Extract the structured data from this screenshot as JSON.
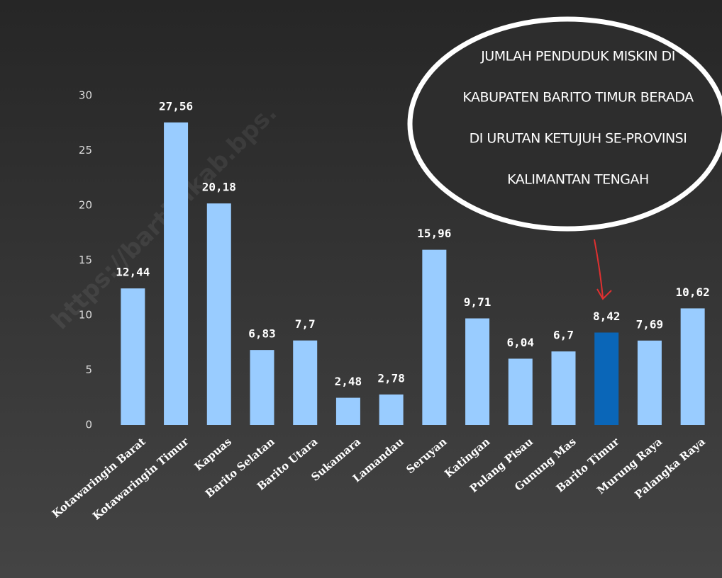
{
  "chart_data": {
    "type": "bar",
    "categories": [
      "Kotawaringin Barat",
      "Kotawaringin Timur",
      "Kapuas",
      "Barito Selatan",
      "Barito Utara",
      "Sukamara",
      "Lamandau",
      "Seruyan",
      "Katingan",
      "Pulang Pisau",
      "Gunung Mas",
      "Barito Timur",
      "Murung Raya",
      "Palangka Raya"
    ],
    "values": [
      12.44,
      27.56,
      20.18,
      6.83,
      7.7,
      2.48,
      2.78,
      15.96,
      9.71,
      6.04,
      6.7,
      8.42,
      7.69,
      10.62
    ],
    "value_labels": [
      "12,44",
      "27,56",
      "20,18",
      "6,83",
      "7,7",
      "2,48",
      "2,78",
      "15,96",
      "9,71",
      "6,04",
      "6,7",
      "8,42",
      "7,69",
      "10,62"
    ],
    "colors": [
      "#99ccff",
      "#99ccff",
      "#99ccff",
      "#99ccff",
      "#99ccff",
      "#99ccff",
      "#99ccff",
      "#99ccff",
      "#99ccff",
      "#99ccff",
      "#99ccff",
      "#0a66b8",
      "#99ccff",
      "#99ccff"
    ],
    "ylim": [
      0,
      30
    ],
    "yticks": [
      0,
      5,
      10,
      15,
      20,
      25,
      30
    ],
    "grid": false,
    "annotation": [
      "JUMLAH PENDUDUK MISKIN DI",
      "KABUPATEN BARITO TIMUR BERADA",
      "DI URUTAN KETUJUH SE-PROVINSI",
      "KALIMANTAN TENGAH"
    ],
    "watermark": "https://bartimkab.bps."
  }
}
